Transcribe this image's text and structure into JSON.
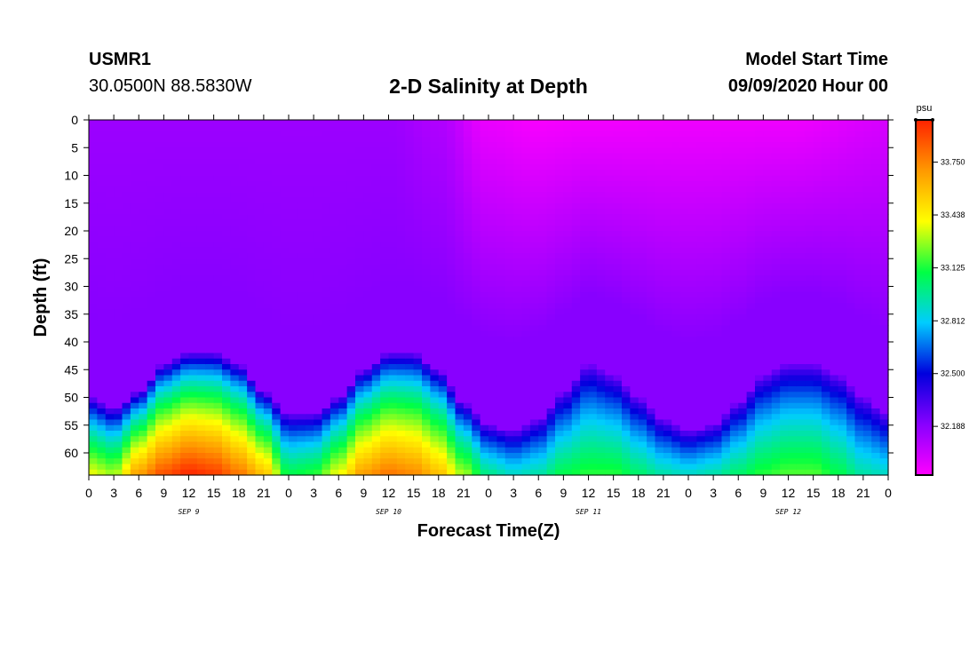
{
  "header": {
    "station_id": "USMR1",
    "station_coords": "30.0500N 88.5830W",
    "start_label": "Model Start Time",
    "start_value": "09/09/2020 Hour 00"
  },
  "chart_data": {
    "type": "heatmap",
    "title": "2-D Salinity at Depth",
    "xlabel": "Forecast Time(Z)",
    "ylabel": "Depth (ft)",
    "x_hours_range": [
      0,
      96
    ],
    "x_tick_step_hours": 3,
    "x_tick_labels": [
      "0",
      "3",
      "6",
      "9",
      "12",
      "15",
      "18",
      "21",
      "0",
      "3",
      "6",
      "9",
      "12",
      "15",
      "18",
      "21",
      "0",
      "3",
      "6",
      "9",
      "12",
      "15",
      "18",
      "21",
      "0",
      "3",
      "6",
      "9",
      "12",
      "15",
      "18",
      "21",
      "0"
    ],
    "day_labels": [
      {
        "label": "SEP 9",
        "hour": 12
      },
      {
        "label": "SEP 10",
        "hour": 36
      },
      {
        "label": "SEP 11",
        "hour": 60
      },
      {
        "label": "SEP 12",
        "hour": 84
      }
    ],
    "y_depth_range_ft": [
      0,
      64
    ],
    "y_ticks": [
      0,
      5,
      10,
      15,
      20,
      25,
      30,
      35,
      40,
      45,
      50,
      55,
      60
    ],
    "colorbar": {
      "unit": "psu",
      "range": [
        31.9,
        34.0
      ],
      "tick_values": [
        33.75,
        33.438,
        33.125,
        32.812,
        32.5,
        32.188
      ],
      "tick_labels": [
        "33.750",
        "33.438",
        "33.125",
        "32.812",
        "32.500",
        "32.188"
      ],
      "colors": [
        "#ff00ff",
        "#8800ff",
        "#0000dd",
        "#00ccff",
        "#00ff44",
        "#ffff00",
        "#ff9900",
        "#ff2200"
      ]
    },
    "series": [
      {
        "name": "halocline_depth_ft",
        "x_hours": [
          0,
          3,
          6,
          9,
          12,
          15,
          18,
          21,
          24,
          27,
          30,
          33,
          36,
          39,
          42,
          45,
          48,
          51,
          54,
          57,
          60,
          63,
          66,
          69,
          72,
          75,
          78,
          81,
          84,
          87,
          90,
          93,
          96
        ],
        "values": [
          50,
          52,
          49,
          44,
          42,
          42,
          44,
          49,
          53,
          53,
          50,
          45,
          42,
          42,
          45,
          51,
          55,
          56,
          54,
          49,
          44,
          46,
          50,
          54,
          56,
          55,
          51,
          46,
          44,
          44,
          46,
          50,
          53
        ]
      },
      {
        "name": "bottom_salinity_psu",
        "x_hours": [
          0,
          3,
          6,
          9,
          12,
          15,
          18,
          21,
          24,
          27,
          30,
          33,
          36,
          39,
          42,
          45,
          48,
          51,
          54,
          57,
          60,
          63,
          66,
          69,
          72,
          75,
          78,
          81,
          84,
          87,
          90,
          93,
          96
        ],
        "values": [
          33.4,
          33.3,
          33.7,
          33.9,
          34.0,
          33.95,
          33.8,
          33.6,
          33.1,
          33.15,
          33.4,
          33.7,
          33.8,
          33.75,
          33.6,
          33.3,
          33.0,
          32.9,
          32.95,
          33.1,
          33.15,
          33.15,
          33.05,
          32.95,
          32.9,
          32.95,
          33.05,
          33.15,
          33.2,
          33.2,
          33.1,
          32.95,
          32.9
        ]
      },
      {
        "name": "surface_salinity_psu",
        "x_hours": [
          0,
          12,
          24,
          36,
          42,
          48,
          54,
          60,
          72,
          84,
          96
        ],
        "values": [
          32.15,
          32.15,
          32.15,
          32.15,
          32.1,
          31.95,
          31.92,
          31.93,
          31.94,
          31.94,
          32.0
        ]
      }
    ]
  }
}
